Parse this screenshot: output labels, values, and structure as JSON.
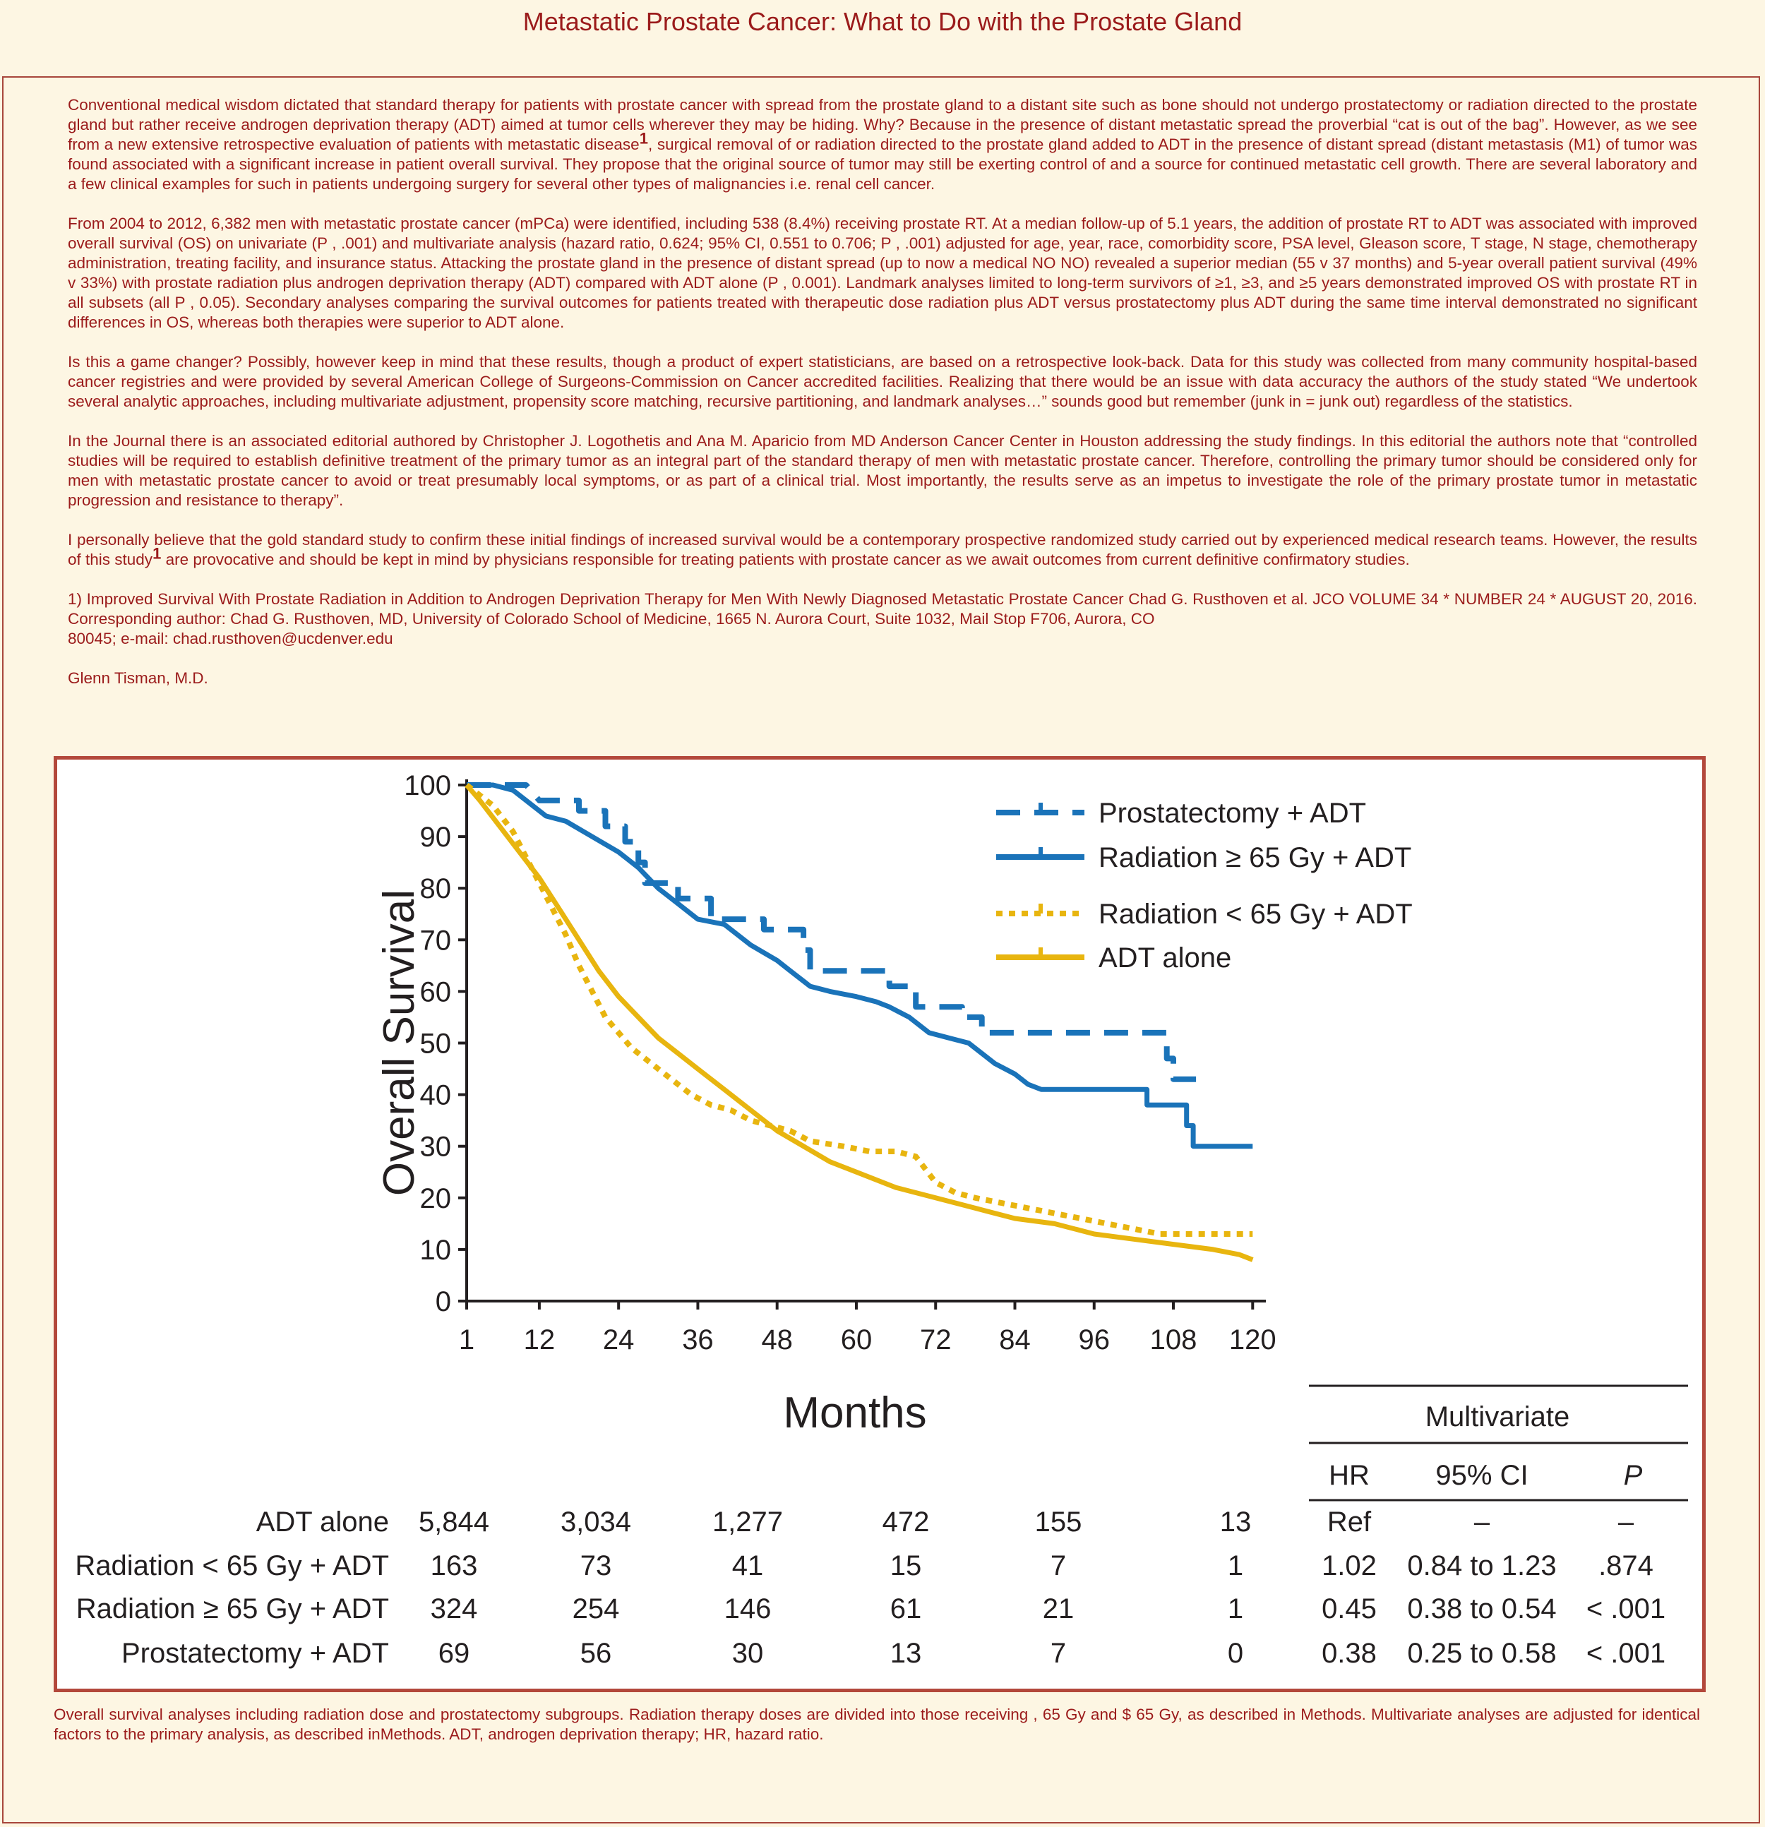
{
  "title": "Metastatic Prostate Cancer: What to Do with the Prostate Gland",
  "article": {
    "p1a": "Conventional medical wisdom dictated that standard therapy for patients with prostate cancer with spread from the prostate gland to a distant site such as bone should not undergo prostatectomy or radiation directed to the prostate gland but rather receive androgen deprivation therapy (ADT) aimed at tumor cells wherever they may be hiding. Why? Because in the presence of distant metastatic spread the proverbial “cat is out of the bag”. However, as we see from a new extensive retrospective evaluation of patients with metastatic disease",
    "p1_sup": "1",
    "p1b": ", surgical removal of or radiation directed to the prostate gland added to ADT in the presence of distant spread (distant metastasis (M1) of tumor was found associated with a significant increase in patient overall survival. They propose that the original source of tumor may still be exerting control of and a source for continued metastatic cell growth. There are several laboratory and a few clinical examples for such in patients undergoing surgery for several other types of malignancies i.e. renal cell cancer.",
    "p2": "From 2004 to 2012, 6,382 men with metastatic prostate cancer (mPCa) were identified, including 538 (8.4%) receiving prostate RT. At a median follow-up of 5.1 years, the addition of prostate RT to ADT was associated with improved overall survival (OS) on univariate (P , .001) and multivariate analysis (hazard ratio, 0.624; 95% CI, 0.551 to 0.706; P , .001) adjusted for age, year, race, comorbidity score, PSA level, Gleason score, T stage, N stage, chemotherapy administration, treating facility, and insurance status. Attacking the prostate gland in the presence of distant spread (up to now a medical NO NO) revealed a superior median (55 v 37 months) and 5-year overall patient survival (49% v 33%) with prostate radiation plus androgen deprivation therapy (ADT) compared with ADT alone (P , 0.001). Landmark analyses limited to long-term survivors of ≥1, ≥3, and ≥5 years demonstrated improved OS with prostate RT in all subsets (all P , 0.05). Secondary analyses comparing the survival outcomes for patients treated with therapeutic dose radiation plus ADT versus prostatectomy plus ADT during the same time interval demonstrated no significant differences in OS, whereas both therapies were superior to ADT alone.",
    "p3": "Is this a game changer? Possibly, however keep in mind that these results, though a product of expert statisticians, are based on a retrospective look-back. Data for this study was collected from many community hospital-based cancer registries and were provided by several American College of Surgeons-Commission on Cancer accredited facilities. Realizing that there would be an issue with data accuracy the authors of the study stated “We undertook several analytic approaches, including multivariate adjustment, propensity score matching, recursive partitioning, and landmark analyses…” sounds good but remember (junk in = junk out) regardless of the statistics.",
    "p4": "In the Journal there is an associated editorial authored by Christopher J. Logothetis and Ana M. Aparicio from MD Anderson Cancer Center in Houston addressing the study findings. In this editorial the authors note that “controlled studies will be required to establish definitive treatment of the primary tumor as an integral part of the standard therapy of men with metastatic prostate cancer. Therefore, controlling the primary tumor should be considered only for men with metastatic prostate cancer to avoid or treat  presumably local symptoms, or as part of a clinical trial. Most importantly, the results serve as an impetus to investigate the role of the primary prostate tumor in metastatic progression and resistance to therapy”.",
    "p5a": "I personally believe that the gold standard study to confirm these initial findings of increased survival would be a contemporary prospective randomized study carried out by experienced medical research teams. However, the results of this study",
    "p5_sup": "1",
    "p5b": " are provocative and should be kept in mind by physicians responsible for treating patients with prostate cancer as we await outcomes from current definitive confirmatory studies.",
    "ref_line1": "1) Improved Survival With Prostate Radiation in Addition to Androgen Deprivation Therapy for Men With Newly Diagnosed Metastatic Prostate Cancer Chad G. Rusthoven et al. JCO VOLUME 34 * NUMBER 24 * AUGUST 20, 2016. Corresponding author: Chad G. Rusthoven, MD, University of Colorado School of Medicine, 1665 N. Aurora Court, Suite 1032, Mail Stop F706, Aurora, CO",
    "ref_line2": "80045; e-mail: chad.rusthoven@ucdenver.edu",
    "author": "Glenn Tisman, M.D."
  },
  "caption": "Overall survival analyses including radiation dose and prostatectomy subgroups. Radiation therapy doses are divided into those receiving , 65 Gy and $ 65 Gy, as described in Methods. Multivariate analyses are adjusted for identical factors to the primary analysis, as described inMethods. ADT, androgen deprivation therapy; HR, hazard ratio.",
  "chart_data": {
    "type": "line",
    "title": "",
    "xlabel": "Months",
    "ylabel": "Overall Survival",
    "xlim": [
      1,
      122
    ],
    "ylim": [
      0,
      100
    ],
    "x_ticks": [
      1,
      12,
      24,
      36,
      48,
      60,
      72,
      84,
      96,
      108,
      120
    ],
    "y_ticks": [
      0,
      10,
      20,
      30,
      40,
      50,
      60,
      70,
      80,
      90,
      100
    ],
    "grid": false,
    "legend_position": "top-right",
    "colors": {
      "blue": "#1a73b9",
      "gold": "#e8b50f"
    },
    "series": [
      {
        "name": "Prostatectomy + ADT",
        "color": "#1a73b9",
        "dash": "dashed",
        "points": [
          [
            1,
            100
          ],
          [
            10,
            100
          ],
          [
            12,
            97
          ],
          [
            18,
            97
          ],
          [
            18,
            95
          ],
          [
            22,
            95
          ],
          [
            22,
            92
          ],
          [
            25,
            92
          ],
          [
            25,
            89
          ],
          [
            27,
            89
          ],
          [
            27,
            85
          ],
          [
            28,
            85
          ],
          [
            28,
            81
          ],
          [
            33,
            81
          ],
          [
            33,
            78
          ],
          [
            38,
            78
          ],
          [
            38,
            74
          ],
          [
            46,
            74
          ],
          [
            46,
            72
          ],
          [
            52,
            72
          ],
          [
            52,
            68
          ],
          [
            53,
            68
          ],
          [
            53,
            64
          ],
          [
            65,
            64
          ],
          [
            65,
            61
          ],
          [
            69,
            61
          ],
          [
            69,
            57
          ],
          [
            76,
            57
          ],
          [
            76,
            55
          ],
          [
            79,
            55
          ],
          [
            79,
            52
          ],
          [
            107,
            52
          ],
          [
            107,
            47
          ],
          [
            108,
            47
          ],
          [
            108,
            43
          ],
          [
            112,
            43
          ]
        ]
      },
      {
        "name": "Radiation ≥ 65 Gy + ADT",
        "color": "#1a73b9",
        "dash": "solid",
        "points": [
          [
            1,
            100
          ],
          [
            5,
            100
          ],
          [
            8,
            99
          ],
          [
            10,
            97
          ],
          [
            13,
            94
          ],
          [
            16,
            93
          ],
          [
            20,
            90
          ],
          [
            24,
            87
          ],
          [
            27,
            84
          ],
          [
            30,
            80
          ],
          [
            33,
            77
          ],
          [
            36,
            74
          ],
          [
            40,
            73
          ],
          [
            44,
            69
          ],
          [
            48,
            66
          ],
          [
            50,
            64
          ],
          [
            53,
            61
          ],
          [
            56,
            60
          ],
          [
            60,
            59
          ],
          [
            63,
            58
          ],
          [
            65,
            57
          ],
          [
            68,
            55
          ],
          [
            71,
            52
          ],
          [
            74,
            51
          ],
          [
            77,
            50
          ],
          [
            79,
            48
          ],
          [
            81,
            46
          ],
          [
            84,
            44
          ],
          [
            86,
            42
          ],
          [
            88,
            41
          ],
          [
            104,
            41
          ],
          [
            104,
            38
          ],
          [
            110,
            38
          ],
          [
            110,
            34
          ],
          [
            111,
            34
          ],
          [
            111,
            30
          ],
          [
            120,
            30
          ]
        ]
      },
      {
        "name": "Radiation < 65 Gy + ADT",
        "color": "#e8b50f",
        "dash": "dotted",
        "points": [
          [
            1,
            100
          ],
          [
            5,
            96
          ],
          [
            8,
            91
          ],
          [
            10,
            86
          ],
          [
            12,
            81
          ],
          [
            14,
            76
          ],
          [
            16,
            71
          ],
          [
            18,
            65
          ],
          [
            20,
            60
          ],
          [
            22,
            55
          ],
          [
            24,
            52
          ],
          [
            26,
            49
          ],
          [
            28,
            47
          ],
          [
            30,
            45
          ],
          [
            32,
            43
          ],
          [
            35,
            40
          ],
          [
            38,
            38
          ],
          [
            41,
            37
          ],
          [
            44,
            35
          ],
          [
            47,
            34
          ],
          [
            50,
            33
          ],
          [
            53,
            31
          ],
          [
            58,
            30
          ],
          [
            62,
            29
          ],
          [
            66,
            29
          ],
          [
            69,
            28
          ],
          [
            72,
            23
          ],
          [
            75,
            21
          ],
          [
            78,
            20
          ],
          [
            82,
            19
          ],
          [
            86,
            18
          ],
          [
            90,
            17
          ],
          [
            94,
            16
          ],
          [
            98,
            15
          ],
          [
            102,
            14
          ],
          [
            106,
            13
          ],
          [
            110,
            13
          ],
          [
            120,
            13
          ]
        ]
      },
      {
        "name": "ADT alone",
        "color": "#e8b50f",
        "dash": "solid",
        "points": [
          [
            1,
            100
          ],
          [
            3,
            97
          ],
          [
            6,
            92
          ],
          [
            9,
            87
          ],
          [
            12,
            82
          ],
          [
            15,
            76
          ],
          [
            18,
            70
          ],
          [
            21,
            64
          ],
          [
            24,
            59
          ],
          [
            27,
            55
          ],
          [
            30,
            51
          ],
          [
            33,
            48
          ],
          [
            36,
            45
          ],
          [
            40,
            41
          ],
          [
            44,
            37
          ],
          [
            48,
            33
          ],
          [
            52,
            30
          ],
          [
            56,
            27
          ],
          [
            60,
            25
          ],
          [
            66,
            22
          ],
          [
            72,
            20
          ],
          [
            78,
            18
          ],
          [
            84,
            16
          ],
          [
            90,
            15
          ],
          [
            96,
            13
          ],
          [
            102,
            12
          ],
          [
            108,
            11
          ],
          [
            114,
            10
          ],
          [
            118,
            9
          ],
          [
            120,
            8
          ]
        ]
      }
    ],
    "at_risk": {
      "x": [
        1,
        24,
        48,
        72,
        96,
        120
      ],
      "rows": [
        {
          "label": "ADT alone",
          "values": [
            "5,844",
            "3,034",
            "1,277",
            "472",
            "155",
            "13"
          ]
        },
        {
          "label": "Radiation < 65 Gy + ADT",
          "values": [
            "163",
            "73",
            "41",
            "15",
            "7",
            "1"
          ]
        },
        {
          "label": "Radiation ≥ 65 Gy + ADT",
          "values": [
            "324",
            "254",
            "146",
            "61",
            "21",
            "1"
          ]
        },
        {
          "label": "Prostatectomy + ADT",
          "values": [
            "69",
            "56",
            "30",
            "13",
            "7",
            "0"
          ]
        }
      ]
    },
    "multivariate": {
      "title": "Multivariate",
      "headers": [
        "HR",
        "95% CI",
        "P"
      ],
      "rows": [
        [
          "Ref",
          "–",
          "–"
        ],
        [
          "1.02",
          "0.84 to 1.23",
          ".874"
        ],
        [
          "0.45",
          "0.38 to 0.54",
          "< .001"
        ],
        [
          "0.38",
          "0.25 to 0.58",
          "< .001"
        ]
      ]
    }
  }
}
